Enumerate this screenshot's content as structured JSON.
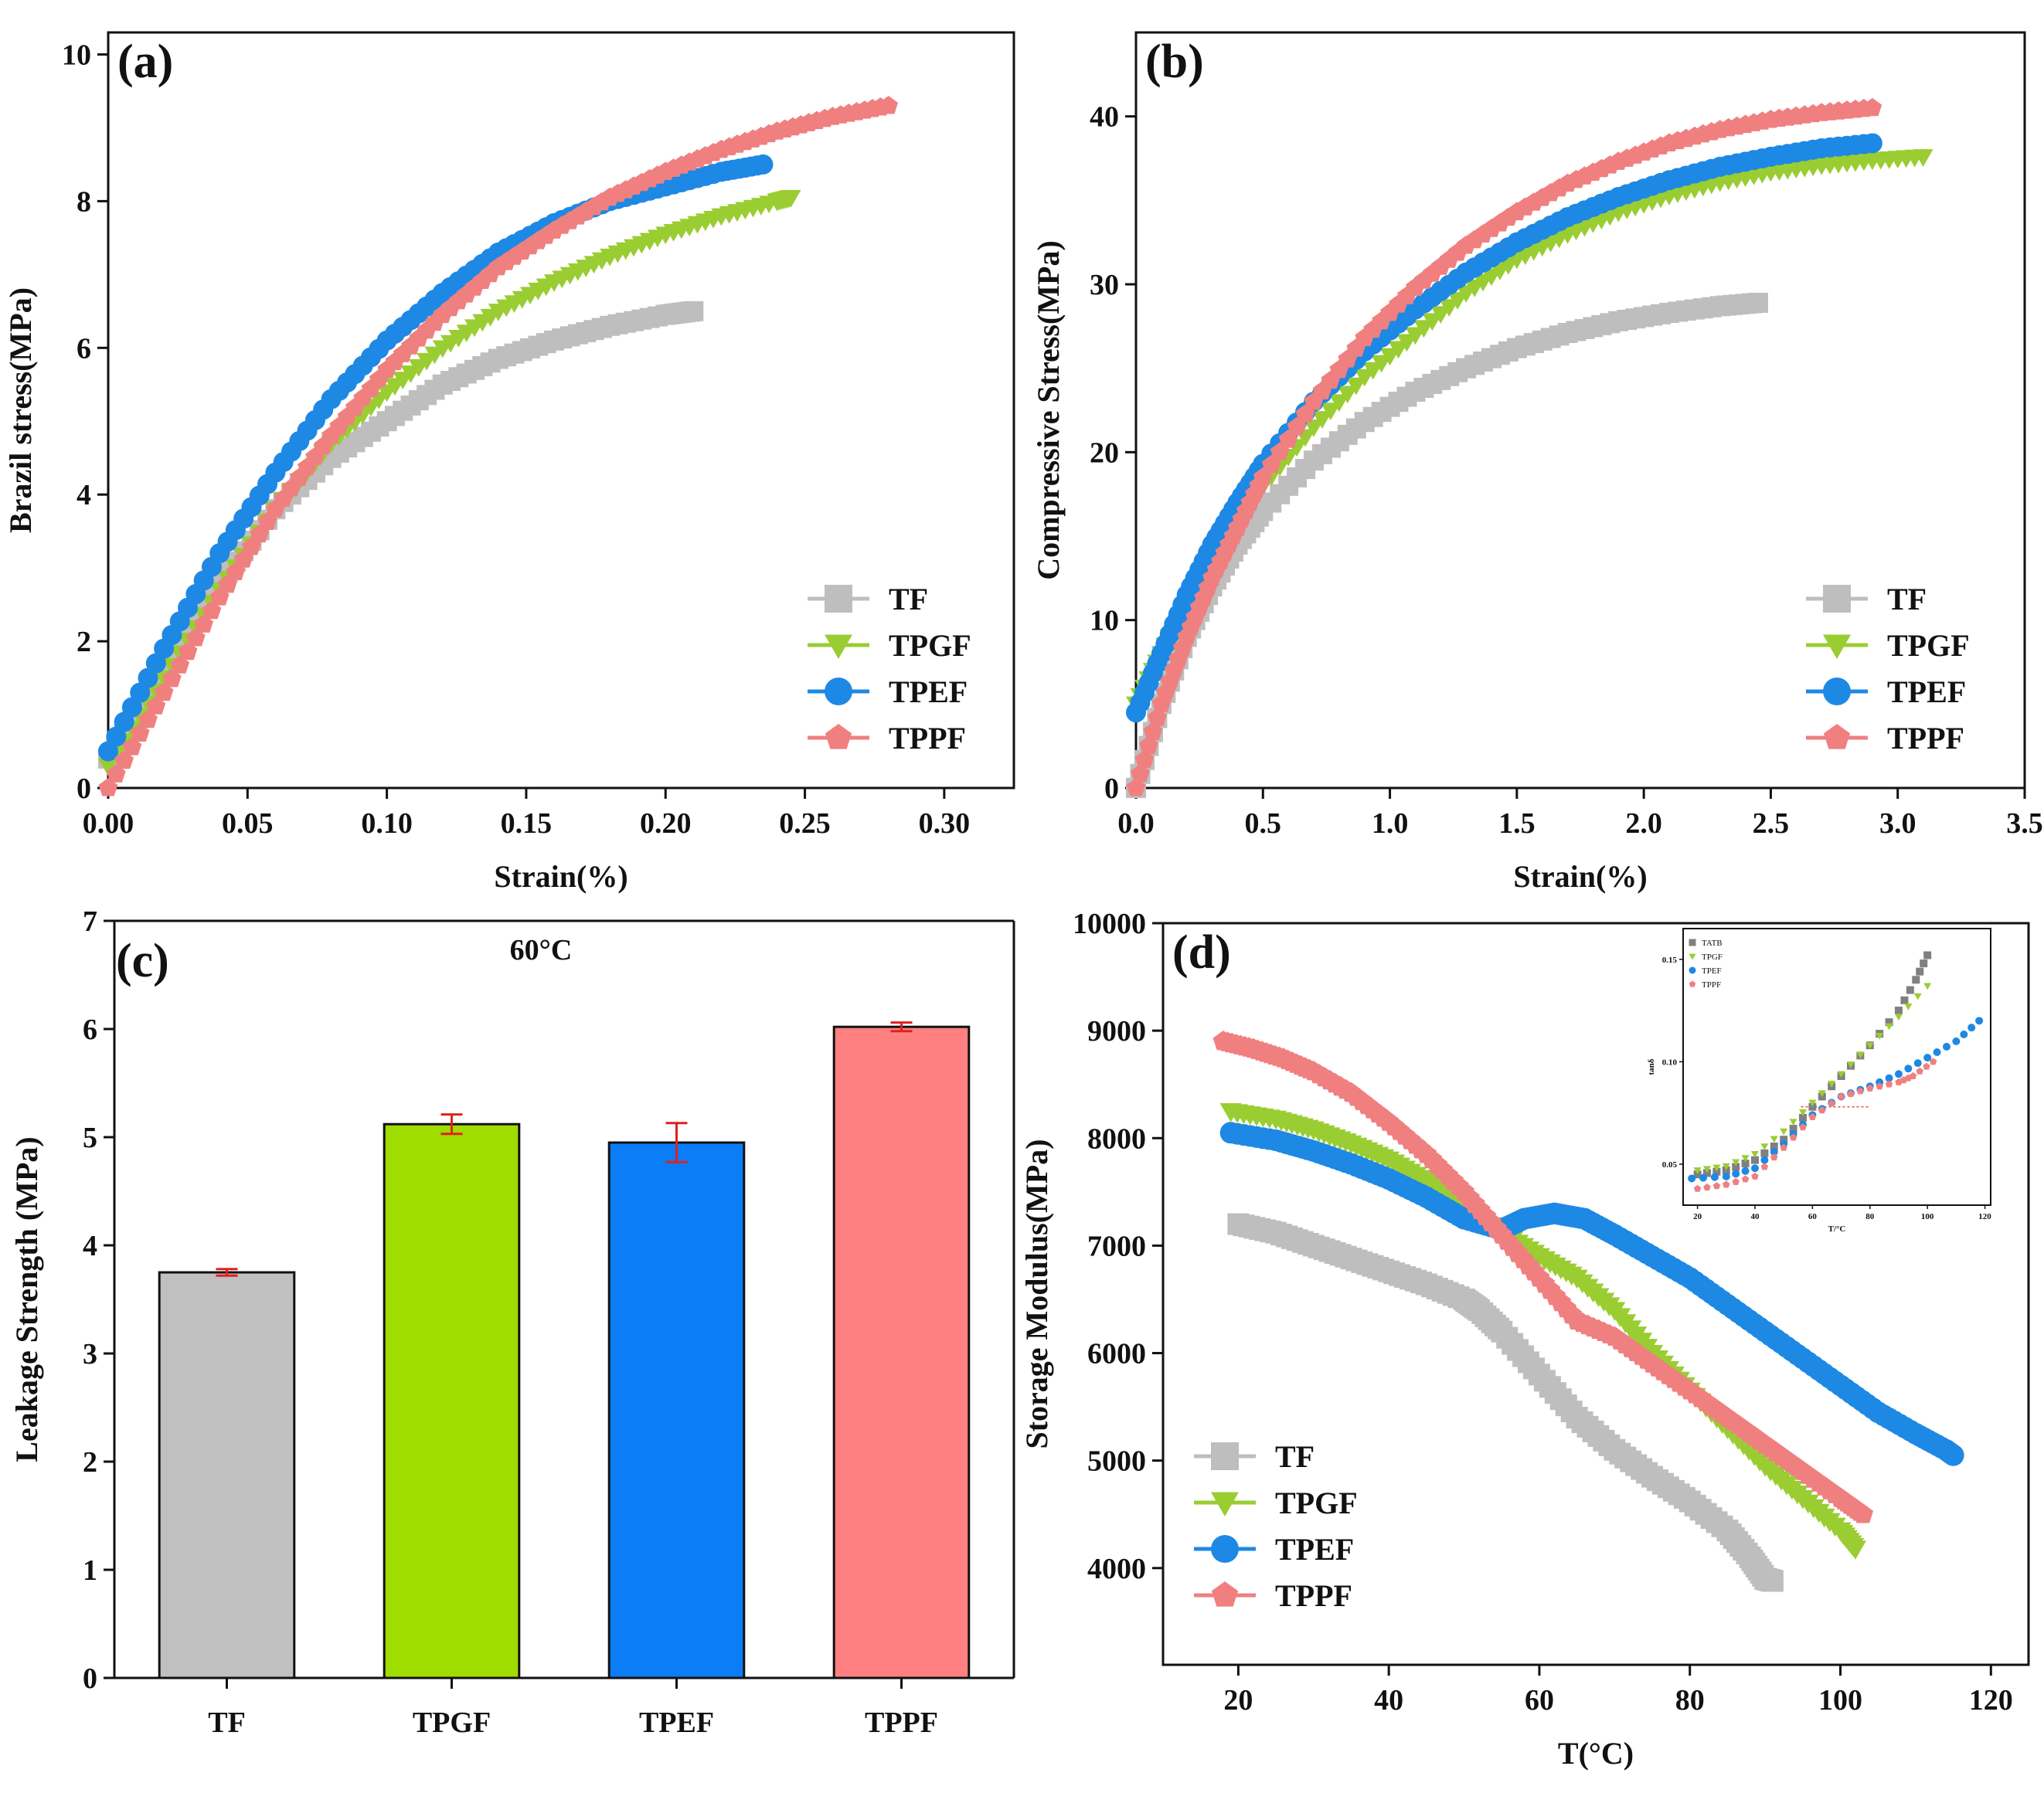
{
  "chart_data": [
    {
      "id": "a",
      "type": "line",
      "panel_label": "(a)",
      "xlabel": "Strain(%)",
      "ylabel": "Brazil stress(MPa)",
      "xlim": [
        0.0,
        0.325
      ],
      "ylim": [
        0,
        10.3
      ],
      "xticks": [
        0.0,
        0.05,
        0.1,
        0.15,
        0.2,
        0.25,
        0.3
      ],
      "xtick_labels": [
        "0.00",
        "0.05",
        "0.10",
        "0.15",
        "0.20",
        "0.25",
        "0.30"
      ],
      "yticks": [
        0,
        2,
        4,
        6,
        8,
        10
      ],
      "ytick_labels": [
        "0",
        "2",
        "4",
        "6",
        "8",
        "10"
      ],
      "legend_position": "bottom-right",
      "series": [
        {
          "name": "TF",
          "color": "#bebebe",
          "marker": "square",
          "x": [
            0.0,
            0.02,
            0.04,
            0.06,
            0.08,
            0.1,
            0.12,
            0.14,
            0.16,
            0.18,
            0.2,
            0.21
          ],
          "y": [
            0.4,
            1.6,
            2.8,
            3.8,
            4.5,
            5.0,
            5.5,
            5.85,
            6.1,
            6.3,
            6.45,
            6.5
          ]
        },
        {
          "name": "TPGF",
          "color": "#9acd32",
          "marker": "triangle-down",
          "x": [
            0.0,
            0.02,
            0.04,
            0.06,
            0.08,
            0.1,
            0.12,
            0.14,
            0.16,
            0.18,
            0.2,
            0.22,
            0.24,
            0.245
          ],
          "y": [
            0.3,
            1.5,
            2.7,
            3.8,
            4.7,
            5.4,
            6.0,
            6.5,
            6.9,
            7.25,
            7.55,
            7.8,
            8.0,
            8.05
          ]
        },
        {
          "name": "TPEF",
          "color": "#1e88e5",
          "marker": "circle",
          "x": [
            0.0,
            0.02,
            0.04,
            0.06,
            0.08,
            0.1,
            0.12,
            0.14,
            0.16,
            0.18,
            0.2,
            0.22,
            0.235
          ],
          "y": [
            0.5,
            1.9,
            3.2,
            4.3,
            5.3,
            6.1,
            6.75,
            7.3,
            7.7,
            8.0,
            8.2,
            8.4,
            8.5
          ]
        },
        {
          "name": "TPPF",
          "color": "#f08080",
          "marker": "pentagon",
          "x": [
            0.0,
            0.02,
            0.04,
            0.06,
            0.08,
            0.1,
            0.12,
            0.14,
            0.16,
            0.18,
            0.2,
            0.22,
            0.24,
            0.26,
            0.28
          ],
          "y": [
            0.0,
            1.3,
            2.6,
            3.8,
            4.8,
            5.7,
            6.45,
            7.1,
            7.6,
            8.05,
            8.4,
            8.7,
            8.95,
            9.15,
            9.3
          ]
        }
      ]
    },
    {
      "id": "b",
      "type": "line",
      "panel_label": "(b)",
      "xlabel": "Strain(%)",
      "ylabel": "Compressive Stress(MPa)",
      "xlim": [
        0.0,
        3.5
      ],
      "ylim": [
        0,
        45
      ],
      "xticks": [
        0.0,
        0.5,
        1.0,
        1.5,
        2.0,
        2.5,
        3.0,
        3.5
      ],
      "xtick_labels": [
        "0.0",
        "0.5",
        "1.0",
        "1.5",
        "2.0",
        "2.5",
        "3.0",
        "3.5"
      ],
      "yticks": [
        0,
        10,
        20,
        30,
        40
      ],
      "ytick_labels": [
        "0",
        "10",
        "20",
        "30",
        "40"
      ],
      "legend_position": "bottom-right",
      "series": [
        {
          "name": "TF",
          "color": "#bebebe",
          "marker": "square",
          "x": [
            0.0,
            0.1,
            0.2,
            0.3,
            0.4,
            0.5,
            0.7,
            0.9,
            1.1,
            1.3,
            1.5,
            1.7,
            1.9,
            2.1,
            2.3,
            2.45
          ],
          "y": [
            0,
            5,
            9,
            12,
            14.5,
            16.5,
            19.5,
            21.8,
            23.6,
            25.0,
            26.2,
            27.1,
            27.8,
            28.3,
            28.7,
            28.9
          ]
        },
        {
          "name": "TPGF",
          "color": "#9acd32",
          "marker": "triangle-down",
          "x": [
            0.0,
            0.1,
            0.2,
            0.3,
            0.4,
            0.5,
            0.7,
            0.9,
            1.1,
            1.3,
            1.5,
            1.7,
            1.9,
            2.1,
            2.3,
            2.5,
            2.7,
            2.9,
            3.1
          ],
          "y": [
            5,
            8,
            11,
            13.5,
            16,
            18,
            21.5,
            24.5,
            27,
            29.5,
            31.5,
            33,
            34.3,
            35.3,
            36.1,
            36.7,
            37.1,
            37.4,
            37.6
          ]
        },
        {
          "name": "TPEF",
          "color": "#1e88e5",
          "marker": "circle",
          "x": [
            0.0,
            0.1,
            0.2,
            0.3,
            0.4,
            0.5,
            0.7,
            0.9,
            1.1,
            1.3,
            1.5,
            1.7,
            1.9,
            2.1,
            2.3,
            2.5,
            2.7,
            2.9
          ],
          "y": [
            4.5,
            8,
            11.5,
            14.5,
            17,
            19.3,
            23,
            26,
            28.5,
            30.7,
            32.5,
            34,
            35.2,
            36.2,
            37,
            37.6,
            38.1,
            38.4
          ]
        },
        {
          "name": "TPPF",
          "color": "#f08080",
          "marker": "pentagon",
          "x": [
            0.0,
            0.1,
            0.2,
            0.3,
            0.4,
            0.5,
            0.7,
            0.9,
            1.1,
            1.3,
            1.5,
            1.7,
            1.9,
            2.1,
            2.3,
            2.5,
            2.7,
            2.9
          ],
          "y": [
            0,
            5,
            9,
            12.5,
            15.5,
            18.5,
            23,
            26.8,
            29.8,
            32.3,
            34.3,
            36,
            37.3,
            38.4,
            39.2,
            39.8,
            40.2,
            40.5
          ]
        }
      ]
    },
    {
      "id": "c",
      "type": "bar",
      "panel_label": "(c)",
      "annotation": "60°C",
      "xlabel": "",
      "ylabel": "Leakage Strength (MPa)",
      "ylim": [
        0,
        7
      ],
      "yticks": [
        0,
        1,
        2,
        3,
        4,
        5,
        6,
        7
      ],
      "ytick_labels": [
        "0",
        "1",
        "2",
        "3",
        "4",
        "5",
        "6",
        "7"
      ],
      "categories": [
        "TF",
        "TPGF",
        "TPEF",
        "TPPF"
      ],
      "values": [
        3.75,
        5.12,
        4.95,
        6.02
      ],
      "errors": [
        0.03,
        0.09,
        0.18,
        0.04
      ],
      "colors": [
        "#c0c0c0",
        "#9fdc00",
        "#0a7df7",
        "#ff8080"
      ],
      "error_color": "#e02020"
    },
    {
      "id": "d",
      "type": "line",
      "panel_label": "(d)",
      "xlabel": "T(°C)",
      "ylabel": "Storage Modulus(MPa)",
      "xlim": [
        10,
        125
      ],
      "ylim": [
        3100,
        10000
      ],
      "xticks": [
        20,
        40,
        60,
        80,
        100,
        120
      ],
      "xtick_labels": [
        "20",
        "40",
        "60",
        "80",
        "100",
        "120"
      ],
      "yticks": [
        4000,
        5000,
        6000,
        7000,
        8000,
        9000,
        10000
      ],
      "ytick_labels": [
        "4000",
        "5000",
        "6000",
        "7000",
        "8000",
        "9000",
        "10000"
      ],
      "legend_position": "bottom-left",
      "series": [
        {
          "name": "TF",
          "color": "#bebebe",
          "marker": "square",
          "x": [
            20,
            25,
            30,
            35,
            40,
            45,
            50,
            52,
            55,
            60,
            65,
            70,
            75,
            80,
            85,
            88,
            90,
            91
          ],
          "y": [
            7200,
            7120,
            7000,
            6880,
            6760,
            6640,
            6500,
            6400,
            6200,
            5800,
            5400,
            5100,
            4850,
            4620,
            4350,
            4100,
            3900,
            3880
          ]
        },
        {
          "name": "TPGF",
          "color": "#9acd32",
          "marker": "triangle-down",
          "x": [
            19,
            25,
            30,
            35,
            40,
            45,
            50,
            55,
            60,
            65,
            70,
            75,
            80,
            85,
            90,
            95,
            100,
            102
          ],
          "y": [
            8250,
            8180,
            8080,
            7950,
            7800,
            7600,
            7350,
            7120,
            6900,
            6700,
            6400,
            6000,
            5650,
            5300,
            4950,
            4650,
            4350,
            4180
          ]
        },
        {
          "name": "TPEF",
          "color": "#1e88e5",
          "marker": "circle",
          "x": [
            19,
            25,
            30,
            35,
            40,
            45,
            50,
            55,
            58,
            62,
            66,
            70,
            75,
            80,
            85,
            90,
            95,
            100,
            105,
            110,
            114,
            115
          ],
          "y": [
            8050,
            7980,
            7880,
            7760,
            7620,
            7450,
            7250,
            7150,
            7250,
            7300,
            7250,
            7100,
            6900,
            6700,
            6450,
            6200,
            5950,
            5700,
            5450,
            5250,
            5100,
            5050
          ]
        },
        {
          "name": "TPPF",
          "color": "#f08080",
          "marker": "pentagon",
          "x": [
            18,
            22,
            26,
            30,
            35,
            40,
            45,
            50,
            55,
            60,
            65,
            70,
            75,
            80,
            85,
            90,
            95,
            100,
            103
          ],
          "y": [
            8900,
            8830,
            8740,
            8620,
            8420,
            8150,
            7850,
            7500,
            7100,
            6700,
            6300,
            6150,
            5900,
            5650,
            5400,
            5150,
            4900,
            4650,
            4500
          ]
        }
      ],
      "inset": {
        "ylabel": "tanδ",
        "xlabel": "T/°C",
        "xlim": [
          15,
          122
        ],
        "ylim": [
          0.03,
          0.165
        ],
        "xticks": [
          20,
          40,
          60,
          80,
          100,
          120
        ],
        "xtick_labels": [
          "20",
          "40",
          "60",
          "80",
          "100",
          "120"
        ],
        "yticks": [
          0.05,
          0.1,
          0.15
        ],
        "ytick_labels": [
          "0.05",
          "0.10",
          "0.15"
        ],
        "series": [
          {
            "name": "TATB",
            "color": "#808080",
            "marker": "square",
            "x": [
              20,
              30,
              40,
              50,
              60,
              70,
              80,
              90,
              96,
              100
            ],
            "y": [
              0.045,
              0.047,
              0.052,
              0.062,
              0.078,
              0.093,
              0.108,
              0.125,
              0.14,
              0.152
            ]
          },
          {
            "name": "TPGF",
            "color": "#9acd32",
            "marker": "triangle-down",
            "x": [
              20,
              30,
              40,
              50,
              60,
              70,
              80,
              90,
              100
            ],
            "y": [
              0.047,
              0.049,
              0.055,
              0.066,
              0.08,
              0.094,
              0.108,
              0.122,
              0.137
            ]
          },
          {
            "name": "TPEF",
            "color": "#1e88e5",
            "marker": "circle",
            "x": [
              18,
              30,
              40,
              50,
              60,
              70,
              80,
              90,
              100,
              110,
              118
            ],
            "y": [
              0.043,
              0.044,
              0.048,
              0.06,
              0.074,
              0.083,
              0.088,
              0.094,
              0.102,
              0.11,
              0.12
            ]
          },
          {
            "name": "TPPF",
            "color": "#f08080",
            "marker": "pentagon",
            "x": [
              20,
              30,
              40,
              50,
              60,
              70,
              80,
              90,
              95,
              102
            ],
            "y": [
              0.038,
              0.04,
              0.044,
              0.058,
              0.073,
              0.083,
              0.087,
              0.09,
              0.093,
              0.1
            ]
          }
        ]
      }
    }
  ]
}
